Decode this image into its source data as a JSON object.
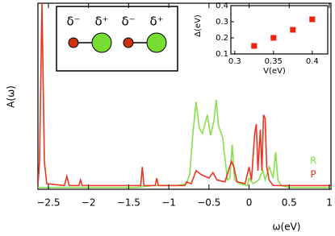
{
  "chart_data": [
    {
      "type": "line",
      "xlabel": "ω(eV)",
      "ylabel": "A(ω)",
      "xlim": [
        -2.63,
        1.02
      ],
      "ylim": [
        0,
        1
      ],
      "xticks": [
        {
          "value": -2.5,
          "label": "−2.5"
        },
        {
          "value": -2,
          "label": "−2"
        },
        {
          "value": -1.5,
          "label": "−1.5"
        },
        {
          "value": -1,
          "label": "−1"
        },
        {
          "value": -0.5,
          "label": "−0.5"
        },
        0,
        0.5,
        1
      ],
      "series": [
        {
          "name": "R",
          "color": "#86e04a",
          "x": [
            -2.63,
            -1.4,
            -1.2,
            -0.9,
            -0.78,
            -0.74,
            -0.7,
            -0.66,
            -0.62,
            -0.58,
            -0.52,
            -0.48,
            -0.44,
            -0.41,
            -0.38,
            -0.33,
            -0.27,
            -0.24,
            -0.21,
            -0.18,
            -0.12,
            -0.02,
            0.0,
            0.05,
            0.12,
            0.17,
            0.2,
            0.25,
            0.3,
            0.33,
            0.36,
            0.4,
            0.5,
            1.02
          ],
          "values": [
            0.01,
            0.01,
            0.02,
            0.02,
            0.03,
            0.08,
            0.3,
            0.47,
            0.33,
            0.3,
            0.4,
            0.29,
            0.36,
            0.48,
            0.34,
            0.28,
            0.05,
            0.06,
            0.24,
            0.05,
            0.03,
            0.02,
            0.06,
            0.03,
            0.05,
            0.1,
            0.05,
            0.12,
            0.06,
            0.2,
            0.05,
            0.02,
            0.01,
            0.01
          ]
        },
        {
          "name": "P",
          "color": "#ee3322",
          "x": [
            -2.63,
            -2.61,
            -2.58,
            -2.55,
            -2.52,
            -2.3,
            -2.27,
            -2.24,
            -2.12,
            -2.1,
            -2.08,
            -1.35,
            -1.33,
            -1.31,
            -1.17,
            -1.15,
            -1.13,
            -0.8,
            -0.78,
            -0.72,
            -0.66,
            -0.6,
            -0.5,
            -0.45,
            -0.4,
            -0.3,
            -0.22,
            -0.19,
            -0.15,
            -0.05,
            0.0,
            0.03,
            0.07,
            0.09,
            0.11,
            0.14,
            0.16,
            0.18,
            0.2,
            0.22,
            0.25,
            0.3,
            1.02
          ],
          "values": [
            0.02,
            0.15,
            1.0,
            0.15,
            0.03,
            0.02,
            0.07,
            0.02,
            0.02,
            0.05,
            0.02,
            0.02,
            0.12,
            0.02,
            0.02,
            0.06,
            0.02,
            0.02,
            0.04,
            0.03,
            0.1,
            0.08,
            0.06,
            0.09,
            0.05,
            0.04,
            0.15,
            0.12,
            0.04,
            0.03,
            0.12,
            0.05,
            0.3,
            0.35,
            0.1,
            0.32,
            0.1,
            0.4,
            0.38,
            0.12,
            0.05,
            0.02,
            0.02
          ]
        }
      ]
    },
    {
      "type": "scatter",
      "xlabel": "V(eV)",
      "ylabel": "Δ(eV)",
      "color": "#ee2211",
      "x": [
        0.325,
        0.35,
        0.375,
        0.4
      ],
      "values": [
        0.15,
        0.2,
        0.25,
        0.315
      ],
      "xlim": [
        0.295,
        0.42
      ],
      "ylim": [
        0.1,
        0.4
      ],
      "xticks": [
        0.3,
        0.35,
        0.4
      ],
      "yticks": [
        0.1,
        0.2,
        0.3,
        0.4
      ]
    }
  ],
  "diagram": {
    "labels": [
      "δ⁻",
      "δ⁺",
      "δ⁻",
      "δ⁺"
    ]
  }
}
